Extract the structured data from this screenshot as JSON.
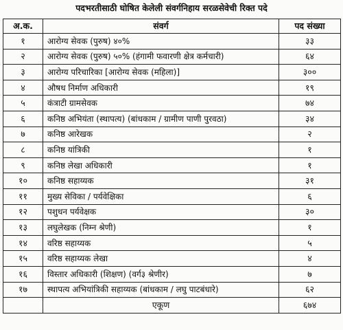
{
  "title": "पदभरतीसाठी घोषित केलेली संवर्गनिहाय सरळसेवेची रिक्त पदे",
  "table": {
    "headers": {
      "sr": "अ.क.",
      "cadre": "संवर्ग",
      "count": "पद संख्या"
    },
    "rows": [
      {
        "sr": "१",
        "cadre": "आरोग्य सेवक (पुरुष) ४०%",
        "count": "३३"
      },
      {
        "sr": "२",
        "cadre": "आरोग्य सेवक (पुरुष) ५०% (हंगामी फवारणी क्षेत्र कर्मचारी)",
        "count": "६४"
      },
      {
        "sr": "३",
        "cadre": "आरोग्य परिचारिका [आरोग्य सेवक (महिला)]",
        "count": "३००"
      },
      {
        "sr": "४",
        "cadre": "औषध निर्माण अधिकारी",
        "count": "१९"
      },
      {
        "sr": "५",
        "cadre": "कंत्राटी ग्रामसेवक",
        "count": "७४"
      },
      {
        "sr": "६",
        "cadre": "कनिष्ठ अभियंता (स्थापत्य) (बांधकाम / ग्रामीण पाणी पुरवठा)",
        "count": "३४"
      },
      {
        "sr": "७",
        "cadre": "कनिष्ठ आरेखक",
        "count": "२"
      },
      {
        "sr": "८",
        "cadre": "कनिष्ठ यांत्रिकी",
        "count": "१"
      },
      {
        "sr": "९",
        "cadre": "कनिष्ठ लेखा अधिकारी",
        "count": "१"
      },
      {
        "sr": "१०",
        "cadre": "कनिष्ठ सहाय्यक",
        "count": "३१"
      },
      {
        "sr": "११",
        "cadre": "मुख्य सेविका / पर्यवेक्षिका",
        "count": "६"
      },
      {
        "sr": "१२",
        "cadre": "पशुधन पर्यवेक्षक",
        "count": "३०"
      },
      {
        "sr": "१३",
        "cadre": "लघुलेखक (निम्न श्रेणी)",
        "count": "१"
      },
      {
        "sr": "१४",
        "cadre": "वरिष्ठ सहाय्यक",
        "count": "५"
      },
      {
        "sr": "१५",
        "cadre": "वरिष्ठ सहाय्यक लेखा",
        "count": "४"
      },
      {
        "sr": "१६",
        "cadre": "विस्तार अधिकारी (शिक्षण) (वर्ग३ श्रेणीर)",
        "count": "७"
      },
      {
        "sr": "१७",
        "cadre": "स्थापत्य अभियांत्रिकी सहाय्यक (बांधकाम / लघु पाटबंधारे)",
        "count": "६२"
      }
    ],
    "total": {
      "label": "एकूण",
      "count": "६७४"
    }
  }
}
